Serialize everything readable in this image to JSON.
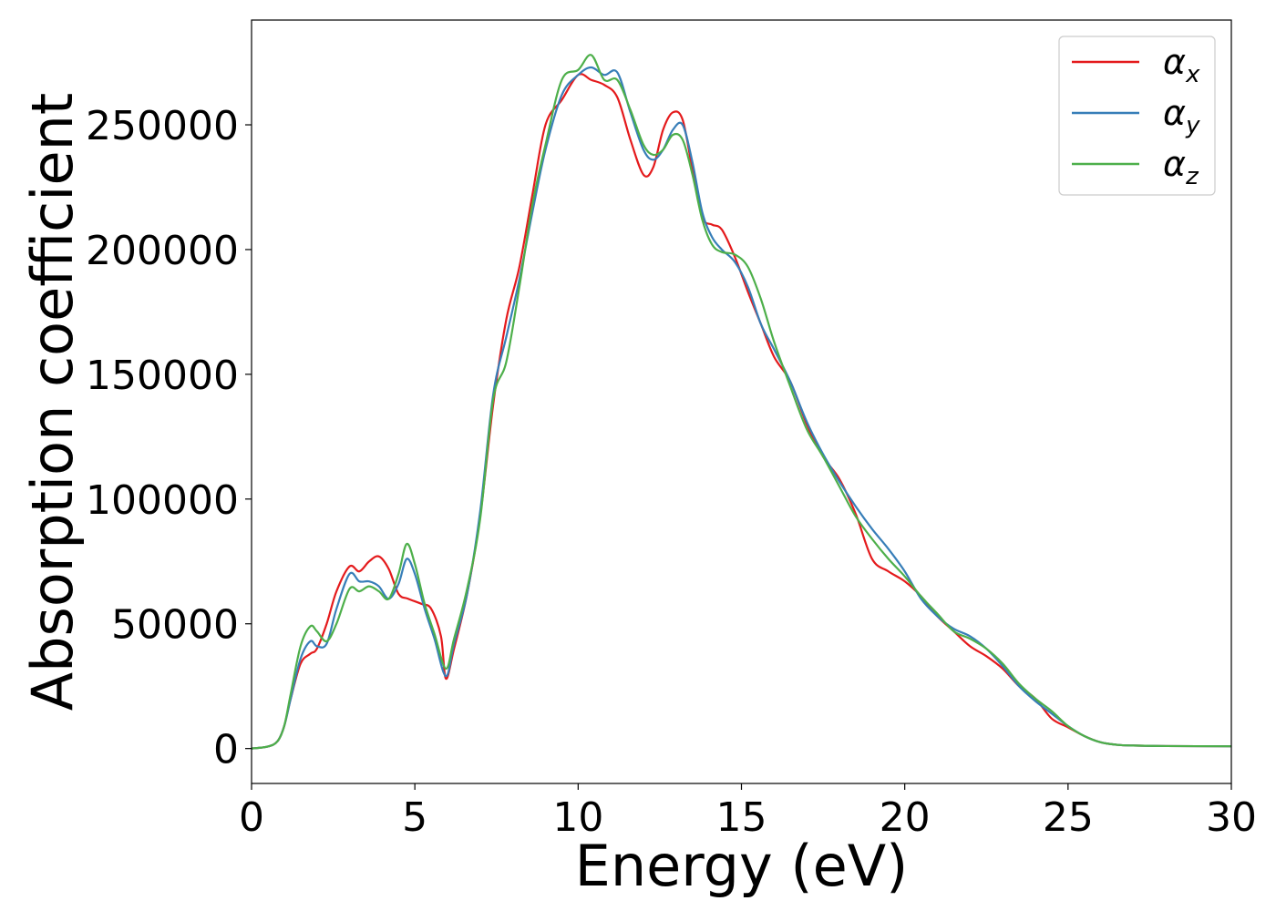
{
  "chart_data": {
    "type": "line",
    "title": "",
    "xlabel": "Energy (eV)",
    "ylabel": "Absorption coefficient",
    "xlim": [
      0,
      30
    ],
    "ylim": [
      -14000,
      292000
    ],
    "xticks": [
      0,
      5,
      10,
      15,
      20,
      25,
      30
    ],
    "yticks": [
      0,
      50000,
      100000,
      150000,
      200000,
      250000
    ],
    "grid": false,
    "legend_position": "top-right",
    "series": [
      {
        "name": "αx",
        "name_base": "α",
        "name_sub": "x",
        "color": "#e41a1c",
        "x": [
          0,
          0.5,
          0.8,
          1.0,
          1.2,
          1.5,
          1.8,
          2.0,
          2.3,
          2.6,
          3.0,
          3.3,
          3.6,
          3.9,
          4.2,
          4.5,
          4.8,
          5.2,
          5.5,
          5.8,
          5.95,
          6.2,
          6.6,
          7.0,
          7.4,
          7.8,
          8.2,
          8.6,
          9.0,
          9.5,
          10.0,
          10.4,
          10.8,
          11.2,
          11.6,
          12.0,
          12.3,
          12.6,
          12.9,
          13.2,
          13.5,
          13.8,
          14.1,
          14.4,
          14.8,
          15.2,
          15.6,
          16.0,
          16.5,
          17.0,
          17.5,
          18.0,
          18.5,
          19.0,
          19.5,
          20.0,
          20.5,
          21.0,
          21.5,
          22.0,
          22.5,
          23.0,
          23.5,
          24.0,
          24.5,
          25.0,
          25.5,
          26.0,
          26.5,
          27.0,
          28.0,
          30.0
        ],
        "y": [
          0,
          800,
          3000,
          9000,
          20000,
          34000,
          38000,
          40000,
          50000,
          63000,
          73000,
          71000,
          75000,
          77000,
          72000,
          62000,
          60000,
          58000,
          56000,
          45000,
          28000,
          40000,
          62000,
          93000,
          138000,
          172000,
          193000,
          222000,
          250000,
          260000,
          270000,
          268000,
          266000,
          261000,
          244000,
          230000,
          233000,
          248000,
          255000,
          252000,
          232000,
          213000,
          210000,
          208000,
          197000,
          183000,
          170000,
          157000,
          147000,
          130000,
          117000,
          108000,
          94000,
          76000,
          71000,
          67000,
          61000,
          53000,
          47000,
          41000,
          37000,
          32000,
          25000,
          20000,
          12000,
          8500,
          5000,
          2500,
          1500,
          1200,
          1000,
          900
        ]
      },
      {
        "name": "αy",
        "name_base": "α",
        "name_sub": "y",
        "color": "#377eb8",
        "x": [
          0,
          0.5,
          0.8,
          1.0,
          1.2,
          1.5,
          1.8,
          2.0,
          2.3,
          2.6,
          3.0,
          3.3,
          3.6,
          3.9,
          4.2,
          4.5,
          4.75,
          5.0,
          5.3,
          5.6,
          5.95,
          6.2,
          6.6,
          7.0,
          7.4,
          7.8,
          8.2,
          8.6,
          9.0,
          9.5,
          10.0,
          10.4,
          10.8,
          11.2,
          11.6,
          12.0,
          12.3,
          12.6,
          12.9,
          13.2,
          13.5,
          13.8,
          14.1,
          14.4,
          14.8,
          15.2,
          15.6,
          16.0,
          16.5,
          17.0,
          17.5,
          18.0,
          18.5,
          19.0,
          19.5,
          20.0,
          20.5,
          21.0,
          21.5,
          22.0,
          22.5,
          23.0,
          23.5,
          24.0,
          24.5,
          25.0,
          25.5,
          26.0,
          26.5,
          27.0,
          28.0,
          30.0
        ],
        "y": [
          0,
          800,
          3000,
          9000,
          20000,
          36000,
          43000,
          41000,
          42000,
          56000,
          70000,
          67000,
          67000,
          65000,
          60000,
          66000,
          76000,
          70000,
          56000,
          44000,
          29000,
          42000,
          62000,
          95000,
          142000,
          165000,
          188000,
          215000,
          240000,
          262000,
          270000,
          273000,
          270000,
          271000,
          255000,
          240000,
          236000,
          240000,
          248000,
          250000,
          235000,
          215000,
          205000,
          200000,
          195000,
          185000,
          170000,
          160000,
          147000,
          131000,
          118000,
          107000,
          97000,
          88000,
          80000,
          71000,
          60000,
          53000,
          48000,
          45000,
          40000,
          33000,
          25000,
          19000,
          14000,
          9000,
          5000,
          2500,
          1500,
          1200,
          1000,
          900
        ]
      },
      {
        "name": "αz",
        "name_base": "α",
        "name_sub": "z",
        "color": "#4daf4a",
        "x": [
          0,
          0.5,
          0.8,
          1.0,
          1.2,
          1.5,
          1.8,
          2.0,
          2.3,
          2.6,
          3.0,
          3.3,
          3.6,
          3.9,
          4.2,
          4.5,
          4.75,
          5.0,
          5.3,
          5.6,
          5.95,
          6.2,
          6.6,
          7.0,
          7.4,
          7.8,
          8.2,
          8.6,
          9.0,
          9.5,
          10.0,
          10.4,
          10.8,
          11.2,
          11.6,
          12.0,
          12.3,
          12.6,
          12.9,
          13.2,
          13.5,
          13.8,
          14.1,
          14.4,
          14.8,
          15.2,
          15.6,
          16.0,
          16.5,
          17.0,
          17.5,
          18.0,
          18.5,
          19.0,
          19.5,
          20.0,
          20.5,
          21.0,
          21.5,
          22.0,
          22.5,
          23.0,
          23.5,
          24.0,
          24.5,
          25.0,
          25.5,
          26.0,
          26.5,
          27.0,
          28.0,
          30.0
        ],
        "y": [
          0,
          800,
          3000,
          9000,
          22000,
          41000,
          49000,
          47000,
          43000,
          50000,
          64000,
          63000,
          65000,
          63000,
          60000,
          70000,
          82000,
          74000,
          58000,
          46000,
          32000,
          44000,
          64000,
          92000,
          140000,
          155000,
          185000,
          218000,
          242000,
          268000,
          272000,
          278000,
          268000,
          268000,
          256000,
          242000,
          238000,
          240000,
          246000,
          244000,
          230000,
          212000,
          202000,
          199000,
          198000,
          193000,
          180000,
          163000,
          145000,
          128000,
          117000,
          105000,
          93000,
          84000,
          76000,
          69000,
          61000,
          54000,
          47000,
          44000,
          40000,
          34000,
          26000,
          20000,
          15000,
          9000,
          5000,
          2500,
          1500,
          1200,
          1000,
          900
        ]
      }
    ]
  }
}
